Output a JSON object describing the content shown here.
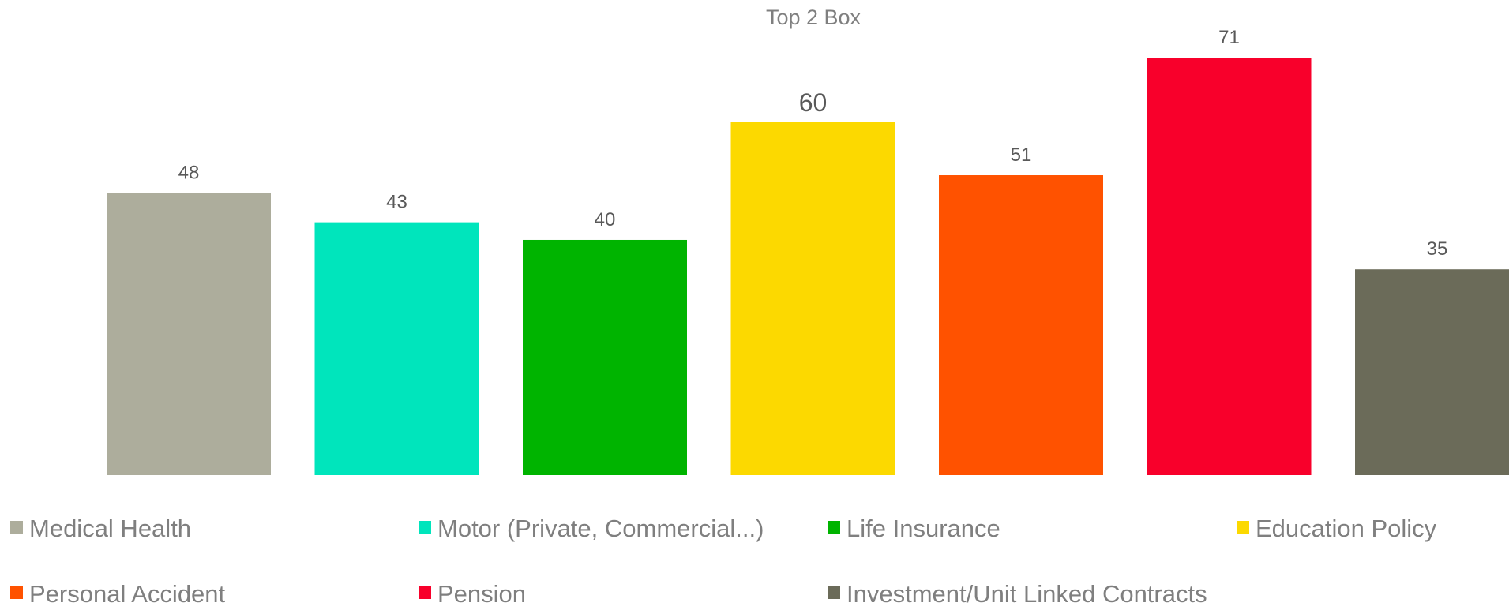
{
  "chart_data": {
    "type": "bar",
    "title": "Top 2 Box",
    "categories": [
      "Medical Health",
      "Motor (Private, Commercial...)",
      "Life Insurance",
      "Education Policy",
      "Personal Accident",
      "Pension",
      "Investment/Unit Linked Contracts"
    ],
    "values": [
      48,
      43,
      40,
      60,
      51,
      71,
      35
    ],
    "colors": [
      "#adad9c",
      "#00e5bc",
      "#00b400",
      "#fcd900",
      "#ff5200",
      "#f8002b",
      "#6b6b59"
    ],
    "ylim": [
      0,
      71
    ],
    "xlabel": "",
    "ylabel": "",
    "grid": false,
    "legend": "bottom"
  }
}
